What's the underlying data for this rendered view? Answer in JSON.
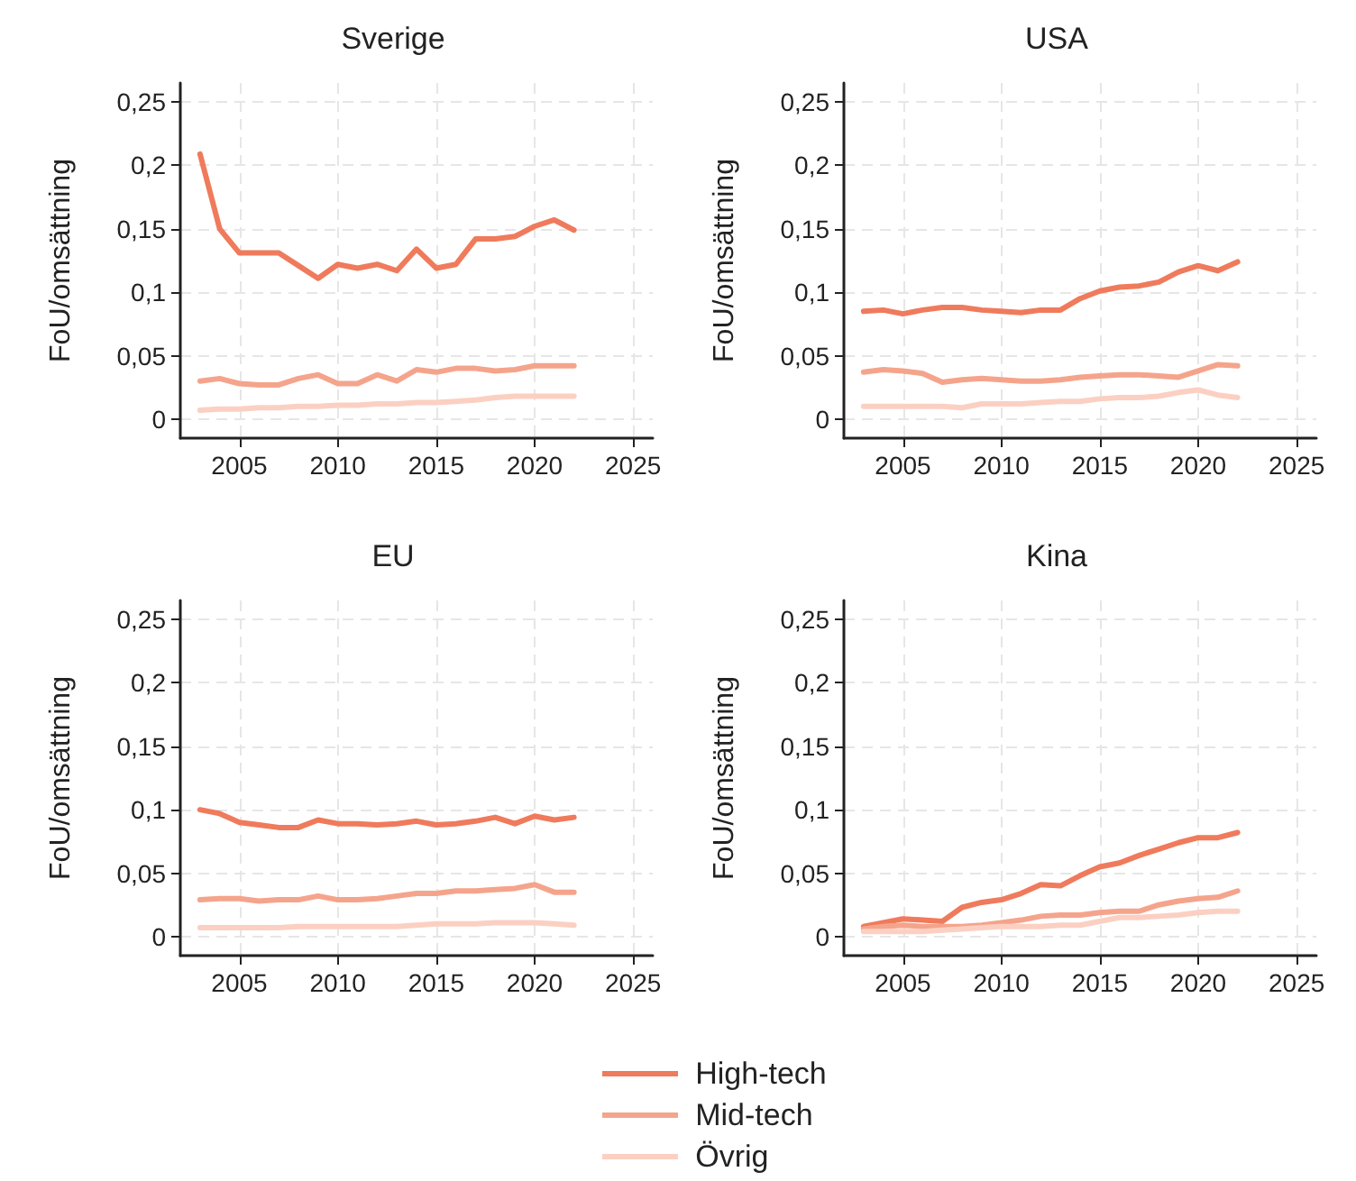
{
  "chart_data": [
    {
      "type": "line",
      "title": "Sverige",
      "ylabel": "FoU/omsättning",
      "x": [
        2003,
        2004,
        2005,
        2006,
        2007,
        2008,
        2009,
        2010,
        2011,
        2012,
        2013,
        2014,
        2015,
        2016,
        2017,
        2018,
        2019,
        2020,
        2021,
        2022
      ],
      "xlim": [
        2002,
        2026
      ],
      "xticks": [
        2005,
        2010,
        2015,
        2020,
        2025
      ],
      "ylim": [
        -0.015,
        0.265
      ],
      "yticks": [
        {
          "value": 0,
          "label": "0"
        },
        {
          "value": 0.05,
          "label": "0,05"
        },
        {
          "value": 0.1,
          "label": "0,1"
        },
        {
          "value": 0.15,
          "label": "0,15"
        },
        {
          "value": 0.2,
          "label": "0,2"
        },
        {
          "value": 0.25,
          "label": "0,25"
        }
      ],
      "grid": true,
      "legend": "bottom",
      "marker": "none",
      "line_style": "solid",
      "series": [
        {
          "name": "High-tech",
          "color": "#ef7b5c",
          "values": [
            0.209,
            0.15,
            0.131,
            0.131,
            0.131,
            0.121,
            0.111,
            0.122,
            0.119,
            0.122,
            0.117,
            0.134,
            0.119,
            0.122,
            0.142,
            0.142,
            0.144,
            0.152,
            0.157,
            0.149
          ]
        },
        {
          "name": "Mid-tech",
          "color": "#f5a48c",
          "values": [
            0.03,
            0.032,
            0.028,
            0.027,
            0.027,
            0.032,
            0.035,
            0.028,
            0.028,
            0.035,
            0.03,
            0.039,
            0.037,
            0.04,
            0.04,
            0.038,
            0.039,
            0.042,
            0.042,
            0.042
          ]
        },
        {
          "name": "Övrig",
          "color": "#fbd0c2",
          "values": [
            0.007,
            0.008,
            0.008,
            0.009,
            0.009,
            0.01,
            0.01,
            0.011,
            0.011,
            0.012,
            0.012,
            0.013,
            0.013,
            0.014,
            0.015,
            0.017,
            0.018,
            0.018,
            0.018,
            0.018
          ]
        }
      ]
    },
    {
      "type": "line",
      "title": "USA",
      "ylabel": "FoU/omsättning",
      "x": [
        2003,
        2004,
        2005,
        2006,
        2007,
        2008,
        2009,
        2010,
        2011,
        2012,
        2013,
        2014,
        2015,
        2016,
        2017,
        2018,
        2019,
        2020,
        2021,
        2022
      ],
      "xlim": [
        2002,
        2026
      ],
      "xticks": [
        2005,
        2010,
        2015,
        2020,
        2025
      ],
      "ylim": [
        -0.015,
        0.265
      ],
      "yticks": [
        {
          "value": 0,
          "label": "0"
        },
        {
          "value": 0.05,
          "label": "0,05"
        },
        {
          "value": 0.1,
          "label": "0,1"
        },
        {
          "value": 0.15,
          "label": "0,15"
        },
        {
          "value": 0.2,
          "label": "0,2"
        },
        {
          "value": 0.25,
          "label": "0,25"
        }
      ],
      "grid": true,
      "marker": "none",
      "line_style": "solid",
      "series": [
        {
          "color": "#ef7b5c",
          "values": [
            0.085,
            0.086,
            0.083,
            0.086,
            0.088,
            0.088,
            0.086,
            0.085,
            0.084,
            0.086,
            0.086,
            0.095,
            0.101,
            0.104,
            0.105,
            0.108,
            0.116,
            0.121,
            0.117,
            0.124
          ]
        },
        {
          "color": "#f5a48c",
          "values": [
            0.037,
            0.039,
            0.038,
            0.036,
            0.029,
            0.031,
            0.032,
            0.031,
            0.03,
            0.03,
            0.031,
            0.033,
            0.034,
            0.035,
            0.035,
            0.034,
            0.033,
            0.038,
            0.043,
            0.042
          ]
        },
        {
          "color": "#fbd0c2",
          "values": [
            0.01,
            0.01,
            0.01,
            0.01,
            0.01,
            0.009,
            0.012,
            0.012,
            0.012,
            0.013,
            0.014,
            0.014,
            0.016,
            0.017,
            0.017,
            0.018,
            0.021,
            0.023,
            0.019,
            0.017
          ]
        }
      ]
    },
    {
      "type": "line",
      "title": "EU",
      "ylabel": "FoU/omsättning",
      "x": [
        2003,
        2004,
        2005,
        2006,
        2007,
        2008,
        2009,
        2010,
        2011,
        2012,
        2013,
        2014,
        2015,
        2016,
        2017,
        2018,
        2019,
        2020,
        2021,
        2022
      ],
      "xlim": [
        2002,
        2026
      ],
      "xticks": [
        2005,
        2010,
        2015,
        2020,
        2025
      ],
      "ylim": [
        -0.015,
        0.265
      ],
      "yticks": [
        {
          "value": 0,
          "label": "0"
        },
        {
          "value": 0.05,
          "label": "0,05"
        },
        {
          "value": 0.1,
          "label": "0,1"
        },
        {
          "value": 0.15,
          "label": "0,15"
        },
        {
          "value": 0.2,
          "label": "0,2"
        },
        {
          "value": 0.25,
          "label": "0,25"
        }
      ],
      "grid": true,
      "marker": "none",
      "line_style": "solid",
      "series": [
        {
          "color": "#ef7b5c",
          "values": [
            0.1,
            0.097,
            0.09,
            0.088,
            0.086,
            0.086,
            0.092,
            0.089,
            0.089,
            0.088,
            0.089,
            0.091,
            0.088,
            0.089,
            0.091,
            0.094,
            0.089,
            0.095,
            0.092,
            0.094
          ]
        },
        {
          "color": "#f5a48c",
          "values": [
            0.029,
            0.03,
            0.03,
            0.028,
            0.029,
            0.029,
            0.032,
            0.029,
            0.029,
            0.03,
            0.032,
            0.034,
            0.034,
            0.036,
            0.036,
            0.037,
            0.038,
            0.041,
            0.035,
            0.035
          ]
        },
        {
          "color": "#fbd0c2",
          "values": [
            0.007,
            0.007,
            0.007,
            0.007,
            0.007,
            0.008,
            0.008,
            0.008,
            0.008,
            0.008,
            0.008,
            0.009,
            0.01,
            0.01,
            0.01,
            0.011,
            0.011,
            0.011,
            0.01,
            0.009
          ]
        }
      ]
    },
    {
      "type": "line",
      "title": "Kina",
      "ylabel": "FoU/omsättning",
      "x": [
        2003,
        2004,
        2005,
        2006,
        2007,
        2008,
        2009,
        2010,
        2011,
        2012,
        2013,
        2014,
        2015,
        2016,
        2017,
        2018,
        2019,
        2020,
        2021,
        2022
      ],
      "xlim": [
        2002,
        2026
      ],
      "xticks": [
        2005,
        2010,
        2015,
        2020,
        2025
      ],
      "ylim": [
        -0.015,
        0.265
      ],
      "yticks": [
        {
          "value": 0,
          "label": "0"
        },
        {
          "value": 0.05,
          "label": "0,05"
        },
        {
          "value": 0.1,
          "label": "0,1"
        },
        {
          "value": 0.15,
          "label": "0,15"
        },
        {
          "value": 0.2,
          "label": "0,2"
        },
        {
          "value": 0.25,
          "label": "0,25"
        }
      ],
      "grid": true,
      "marker": "none",
      "line_style": "solid",
      "series": [
        {
          "color": "#ef7b5c",
          "values": [
            0.008,
            0.011,
            0.014,
            0.013,
            0.012,
            0.023,
            0.027,
            0.029,
            0.034,
            0.041,
            0.04,
            0.048,
            0.055,
            0.058,
            0.064,
            0.069,
            0.074,
            0.078,
            0.078,
            0.082
          ]
        },
        {
          "color": "#f5a48c",
          "values": [
            0.006,
            0.008,
            0.009,
            0.008,
            0.008,
            0.008,
            0.009,
            0.011,
            0.013,
            0.016,
            0.017,
            0.017,
            0.019,
            0.02,
            0.02,
            0.025,
            0.028,
            0.03,
            0.031,
            0.036
          ]
        },
        {
          "color": "#fbd0c2",
          "values": [
            0.004,
            0.004,
            0.004,
            0.004,
            0.005,
            0.006,
            0.007,
            0.008,
            0.008,
            0.008,
            0.009,
            0.009,
            0.012,
            0.015,
            0.015,
            0.016,
            0.017,
            0.019,
            0.02,
            0.02
          ]
        }
      ]
    }
  ]
}
